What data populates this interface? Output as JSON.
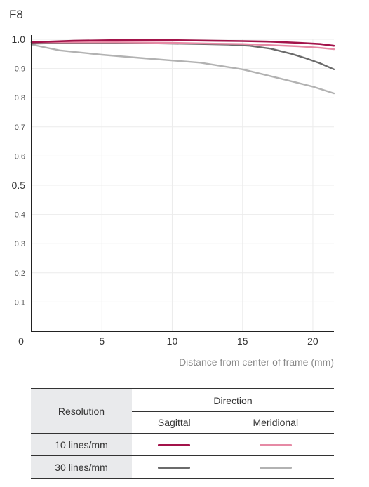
{
  "chart_data": {
    "type": "line",
    "title": "F8",
    "xlabel": "Distance from center of frame (mm)",
    "ylabel": "",
    "xlim": [
      0,
      21.5
    ],
    "ylim": [
      0,
      1.0
    ],
    "x_ticks": [
      "0",
      "5",
      "10",
      "15",
      "20"
    ],
    "y_ticks": [
      "1.0",
      "0.9",
      "0.8",
      "0.7",
      "0.6",
      "0.5",
      "0.4",
      "0.3",
      "0.2",
      "0.1"
    ],
    "grid": true,
    "series": [
      {
        "name": "10 lines/mm Sagittal",
        "color": "#a3134a",
        "x": [
          0,
          3,
          7,
          10,
          13,
          15,
          17,
          19,
          20.5,
          21.5
        ],
        "y": [
          0.99,
          0.995,
          0.998,
          0.997,
          0.995,
          0.994,
          0.992,
          0.988,
          0.984,
          0.978
        ]
      },
      {
        "name": "10 lines/mm Meridional",
        "color": "#e68aa5",
        "x": [
          0,
          3,
          6,
          10,
          13,
          15,
          17,
          19,
          20.5,
          21.5
        ],
        "y": [
          0.99,
          0.99,
          0.99,
          0.988,
          0.985,
          0.984,
          0.98,
          0.976,
          0.971,
          0.966
        ]
      },
      {
        "name": "30 lines/mm Sagittal",
        "color": "#6b6b6b",
        "x": [
          0,
          3,
          6,
          9,
          12,
          14,
          15.5,
          17,
          18.5,
          19.5,
          20.5,
          21.5
        ],
        "y": [
          0.985,
          0.988,
          0.988,
          0.986,
          0.984,
          0.982,
          0.978,
          0.968,
          0.95,
          0.935,
          0.918,
          0.897
        ]
      },
      {
        "name": "30 lines/mm Meridional",
        "color": "#b2b2b2",
        "x": [
          0,
          2,
          5,
          8,
          12,
          15,
          18,
          20,
          21.5
        ],
        "y": [
          0.982,
          0.962,
          0.947,
          0.935,
          0.92,
          0.897,
          0.862,
          0.838,
          0.815
        ]
      }
    ]
  },
  "legend": {
    "resolution_header": "Resolution",
    "direction_header": "Direction",
    "sagittal": "Sagittal",
    "meridional": "Meridional",
    "row1_label": "10 lines/mm",
    "row2_label": "30 lines/mm",
    "colors": {
      "r10_sag": "#a3134a",
      "r10_mer": "#e68aa5",
      "r30_sag": "#6b6b6b",
      "r30_mer": "#b2b2b2"
    }
  }
}
